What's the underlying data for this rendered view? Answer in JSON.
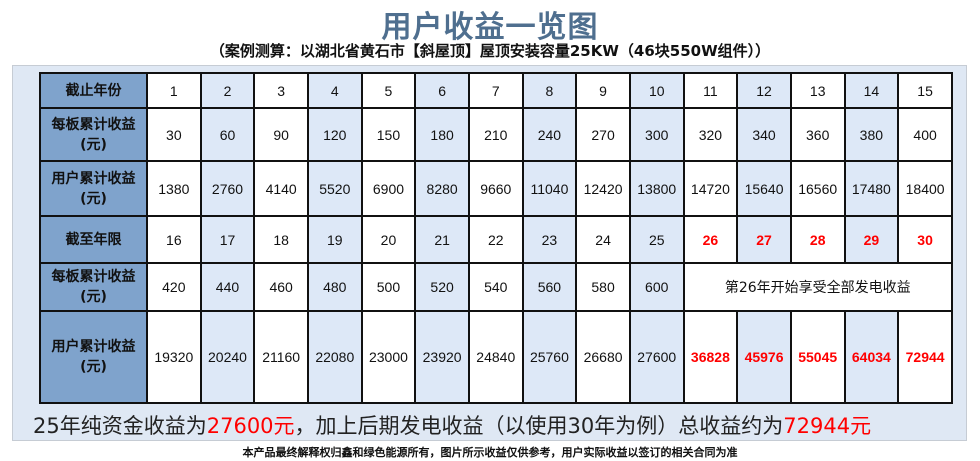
{
  "title": "用户收益一览图",
  "subtitle": "（案例测算：以湖北省黄石市【斜屋顶】屋顶安装容量25KW（46块550W组件））",
  "table": {
    "rows": [
      {
        "label": "截止年份",
        "values": [
          "1",
          "2",
          "3",
          "4",
          "5",
          "6",
          "7",
          "8",
          "9",
          "10",
          "11",
          "12",
          "13",
          "14",
          "15"
        ]
      },
      {
        "label": "每板累计收益(元)",
        "values": [
          "30",
          "60",
          "90",
          "120",
          "150",
          "180",
          "210",
          "240",
          "270",
          "300",
          "320",
          "340",
          "360",
          "380",
          "400"
        ]
      },
      {
        "label": "用户累计收益(元)",
        "values": [
          "1380",
          "2760",
          "4140",
          "5520",
          "6900",
          "8280",
          "9660",
          "11040",
          "12420",
          "13800",
          "14720",
          "15640",
          "16560",
          "17480",
          "18400"
        ]
      },
      {
        "label": "截至年限",
        "values": [
          "16",
          "17",
          "18",
          "19",
          "20",
          "21",
          "22",
          "23",
          "24",
          "25",
          "26",
          "27",
          "28",
          "29",
          "30"
        ]
      },
      {
        "label": "每板累计收益(元)",
        "values": [
          "420",
          "440",
          "460",
          "480",
          "500",
          "520",
          "540",
          "560",
          "580",
          "600"
        ],
        "note": "第26年开始享受全部发电收益"
      },
      {
        "label": "用户累计收益(元)",
        "values": [
          "19320",
          "20240",
          "21160",
          "22080",
          "23000",
          "23920",
          "24840",
          "25760",
          "26680",
          "27600",
          "36828",
          "45976",
          "55045",
          "64034",
          "72944"
        ]
      }
    ],
    "highlight_color": "#ff0000"
  },
  "summary": {
    "part1": "25年纯资金收益为",
    "value1": "27600元",
    "part2": "，加上后期发电收益（以使用30年为例）总收益约为",
    "value2": "72944元"
  },
  "footer": "本产品最终解释权归鑫和绿色能源所有，图片所示收益仅供参考，用户实际收益以签订的相关合同为准"
}
